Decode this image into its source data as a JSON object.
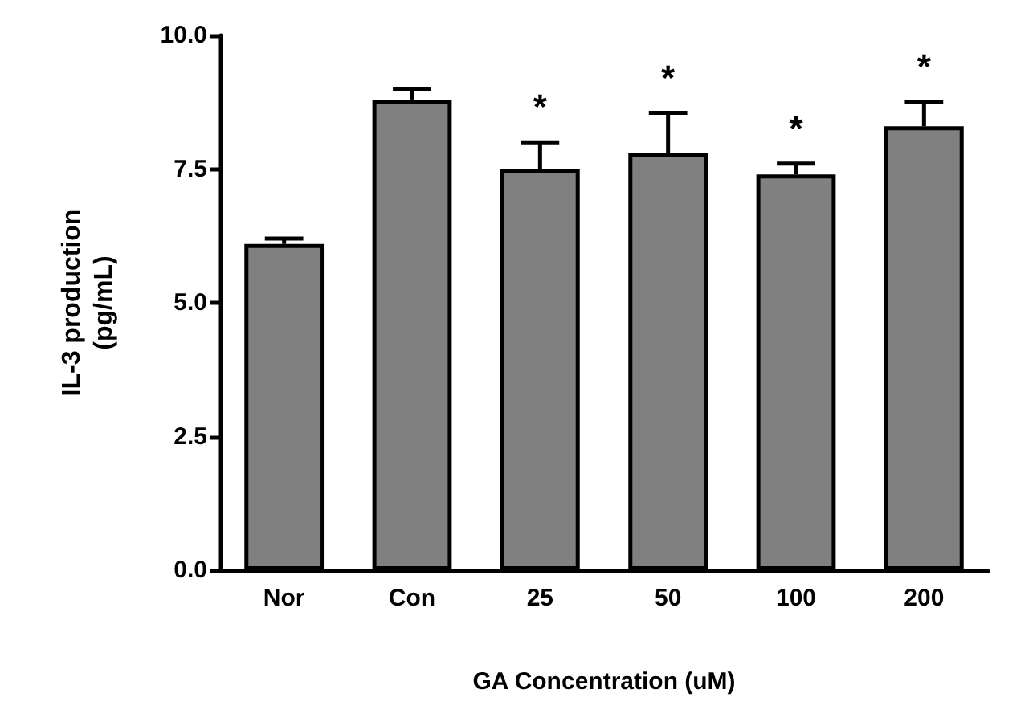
{
  "chart_data": {
    "type": "bar",
    "categories": [
      "Nor",
      "Con",
      "25",
      "50",
      "100",
      "200"
    ],
    "values": [
      6.1,
      8.8,
      7.5,
      7.8,
      7.4,
      8.3
    ],
    "errors": [
      [
        6.1,
        6.2
      ],
      [
        8.8,
        9.0
      ],
      [
        7.5,
        8.0
      ],
      [
        7.8,
        8.55
      ],
      [
        7.4,
        7.6
      ],
      [
        8.3,
        8.75
      ]
    ],
    "color": "#808080",
    "xlabel": "GA Concentration (uM)",
    "ylabel": "IL-3 production\n(pg/mL)",
    "ylim": [
      0,
      10
    ],
    "yticks": [
      {
        "value": 0,
        "label": "0.0"
      },
      {
        "value": 2.5,
        "label": "2.5"
      },
      {
        "value": 5,
        "label": "5.0"
      },
      {
        "value": 7.5,
        "label": "7.5"
      },
      {
        "value": 10,
        "label": "10.0"
      }
    ],
    "value_labels": [
      null,
      null,
      "*",
      "*",
      "*",
      "*"
    ],
    "grid": false
  }
}
